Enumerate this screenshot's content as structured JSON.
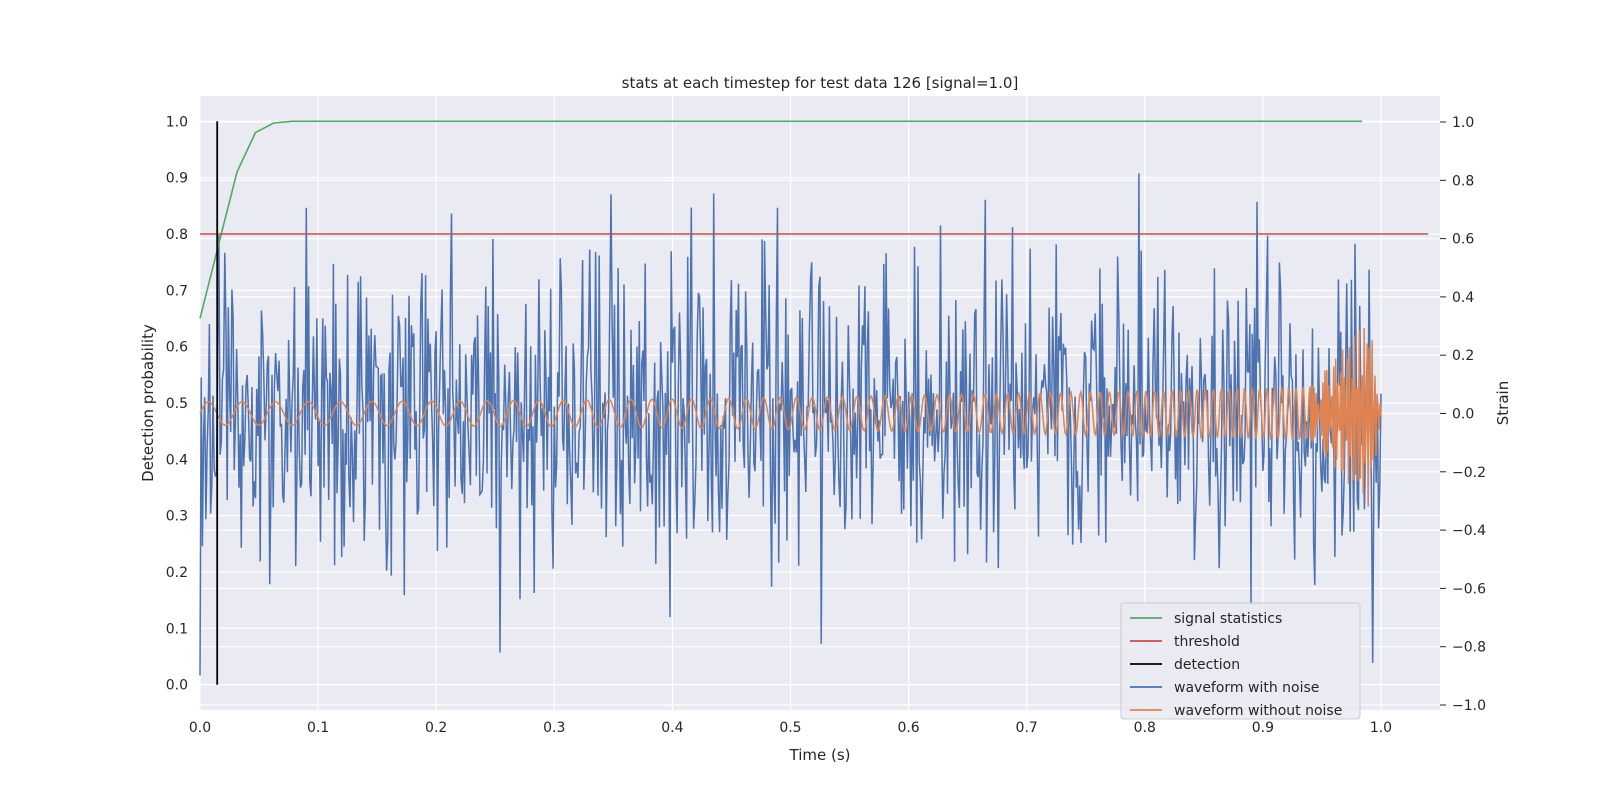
{
  "chart_data": {
    "type": "line",
    "title": "stats at each timestep for test data 126 [signal=1.0]",
    "xlabel": "Time (s)",
    "ylabel_left": "Detection probability",
    "ylabel_right": "Strain",
    "xlim": [
      0.0,
      1.05
    ],
    "ylim_left": [
      -0.045,
      1.045
    ],
    "ylim_right": [
      -1.0,
      1.0
    ],
    "x_ticks": [
      "0.0",
      "0.1",
      "0.2",
      "0.3",
      "0.4",
      "0.5",
      "0.6",
      "0.7",
      "0.8",
      "0.9",
      "1.0"
    ],
    "y_left_ticks": [
      "0.0",
      "0.1",
      "0.2",
      "0.3",
      "0.4",
      "0.5",
      "0.6",
      "0.7",
      "0.8",
      "0.9",
      "1.0"
    ],
    "y_right_ticks": [
      "−1.0",
      "−0.8",
      "−0.6",
      "−0.4",
      "−0.2",
      "0.0",
      "0.2",
      "0.4",
      "0.6",
      "0.8",
      "1.0"
    ],
    "grid": true,
    "legend_position": "lower-right",
    "colors": {
      "background": "#eaeaf2",
      "grid": "#ffffff",
      "signal_statistics": "#55a868",
      "threshold": "#c44e52",
      "detection": "#000000",
      "waveform_with_noise": "#4c72b0",
      "waveform_without_noise": "#dd8452"
    },
    "series": [
      {
        "name": "signal statistics",
        "axis": "left",
        "x": [
          0.0,
          0.0156,
          0.0313,
          0.0469,
          0.0625,
          0.0781,
          0.0938,
          0.2,
          0.4,
          0.6,
          0.8,
          0.984
        ],
        "y": [
          0.65,
          0.78,
          0.91,
          0.98,
          0.997,
          1.0,
          1.0,
          1.0,
          1.0,
          1.0,
          1.0,
          1.0
        ]
      },
      {
        "name": "threshold",
        "axis": "left",
        "x": [
          0.0,
          1.04
        ],
        "y": [
          0.8,
          0.8
        ]
      },
      {
        "name": "detection",
        "axis": "left",
        "x": [
          0.0146,
          0.0146
        ],
        "y": [
          0.0,
          1.0
        ]
      },
      {
        "name": "waveform with noise",
        "axis": "right",
        "x_range": [
          0.0,
          1.0
        ],
        "description_of_values": "noisy strain, roughly between -0.95 and 0.95"
      },
      {
        "name": "waveform without noise",
        "axis": "right",
        "x_range": [
          0.0,
          1.0
        ],
        "description_of_values": "chirp with amplitude rising from about 0.04 to 0.35 near t=0.99"
      }
    ]
  }
}
